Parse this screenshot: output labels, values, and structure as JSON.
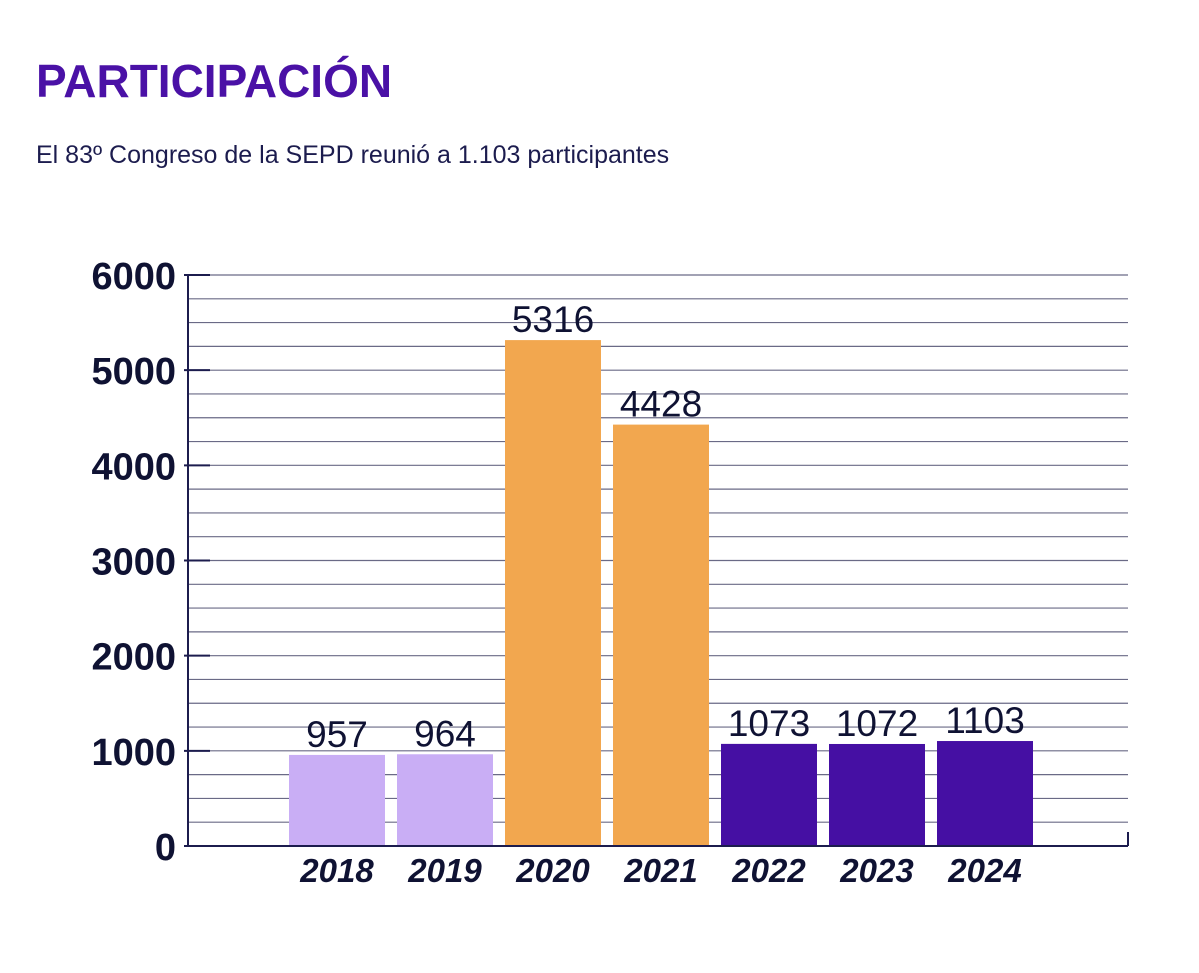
{
  "header": {
    "title": "PARTICIPACIÓN",
    "subtitle": "El 83º Congreso de la SEPD reunió a 1.103 participantes"
  },
  "chart_data": {
    "type": "bar",
    "title": "PARTICIPACIÓN",
    "subtitle": "El 83º Congreso de la SEPD reunió a 1.103 participantes",
    "xlabel": "",
    "ylabel": "",
    "categories": [
      "2018",
      "2019",
      "2020",
      "2021",
      "2022",
      "2023",
      "2024"
    ],
    "values": [
      957,
      964,
      5316,
      4428,
      1073,
      1072,
      1103
    ],
    "data_labels": [
      "957",
      "964",
      "5316",
      "4428",
      "1073",
      "1072",
      "1103"
    ],
    "bar_colors": [
      "#c9aef5",
      "#c9aef5",
      "#f2a74f",
      "#f2a74f",
      "#450fa3",
      "#450fa3",
      "#450fa3"
    ],
    "ylim": [
      0,
      6000
    ],
    "yticks": [
      0,
      1000,
      2000,
      3000,
      4000,
      5000,
      6000
    ],
    "ytick_labels": [
      "0",
      "1000",
      "2000",
      "3000",
      "4000",
      "5000",
      "6000"
    ],
    "minor_grid_step": 250,
    "grid": true,
    "legend": "none"
  },
  "colors": {
    "title": "#4a11a6",
    "subtitle": "#1c1c4e",
    "axis": "#1c1c4e",
    "grid": "#6a6a86"
  }
}
